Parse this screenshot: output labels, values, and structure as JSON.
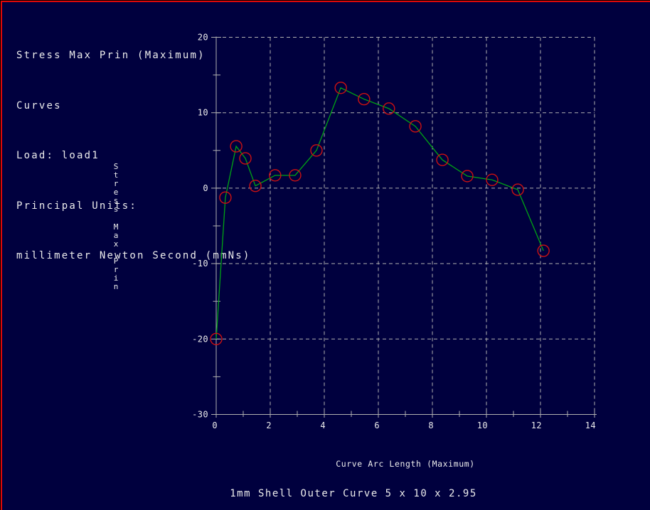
{
  "colors": {
    "window_background": "#00003e",
    "frame_red": "#dd0808",
    "text": "#ececec",
    "grid": "#b0b0b0",
    "axis": "#b0b0b0",
    "curve_green": "#00a414",
    "marker_red": "#cc1111"
  },
  "header": {
    "lines": [
      "Stress Max Prin (Maximum)",
      "Curves",
      "Load: load1",
      "Principal Units:",
      "millimeter Newton Second (mmNs)"
    ]
  },
  "chart_data": {
    "type": "line",
    "title": "1mm Shell Outer Curve 5 x 10 x 2.95",
    "xlabel": "Curve Arc Length (Maximum)",
    "ylabel": "Stress Max Prin",
    "xlim": [
      0,
      14
    ],
    "ylim": [
      -30,
      20
    ],
    "x_ticks": [
      0,
      2,
      4,
      6,
      8,
      10,
      12,
      14
    ],
    "y_ticks": [
      20,
      10,
      0,
      -10,
      -20,
      -30
    ],
    "x_minor_tick_step": 1,
    "y_minor_tick_step": 5,
    "grid": "dashed",
    "legend": "none",
    "series": [
      {
        "name": "load1",
        "marker": "open-circle",
        "points": [
          [
            0.0,
            -20.0
          ],
          [
            0.34,
            -1.25
          ],
          [
            0.74,
            5.55
          ],
          [
            1.08,
            3.95
          ],
          [
            1.45,
            0.3
          ],
          [
            2.18,
            1.7
          ],
          [
            2.92,
            1.7
          ],
          [
            3.71,
            5.0
          ],
          [
            4.61,
            13.3
          ],
          [
            5.47,
            11.8
          ],
          [
            6.39,
            10.55
          ],
          [
            7.37,
            8.2
          ],
          [
            8.37,
            3.75
          ],
          [
            9.29,
            1.6
          ],
          [
            10.21,
            1.1
          ],
          [
            11.16,
            -0.2
          ],
          [
            12.11,
            -8.3
          ]
        ]
      }
    ]
  }
}
